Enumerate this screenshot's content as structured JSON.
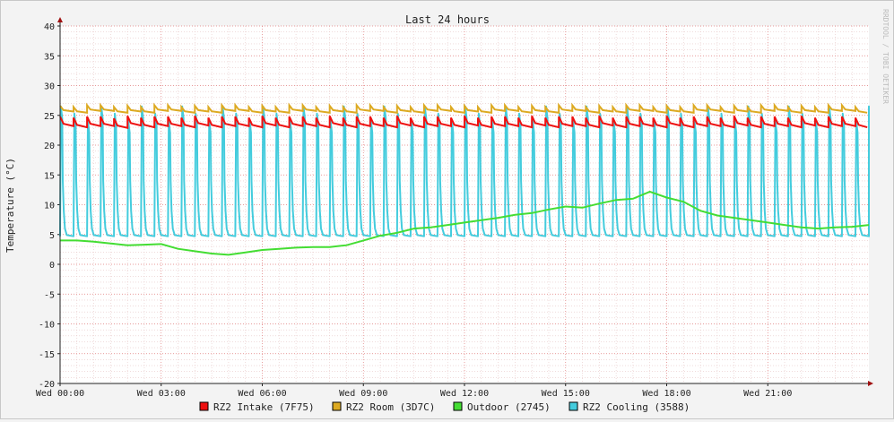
{
  "chart_data": {
    "type": "line",
    "title": "Last 24 hours",
    "ylabel": "Temperature (°C)",
    "watermark": "RRDTOOL / TOBI OETIKER",
    "ylim": [
      -20,
      40
    ],
    "y_ticks": [
      40,
      35,
      30,
      25,
      20,
      15,
      10,
      5,
      0,
      -5,
      -10,
      -15,
      -20
    ],
    "x_ticks": [
      "Wed 00:00",
      "Wed 03:00",
      "Wed 06:00",
      "Wed 09:00",
      "Wed 12:00",
      "Wed 15:00",
      "Wed 18:00",
      "Wed 21:00"
    ],
    "x_tick_hours": [
      0,
      3,
      6,
      9,
      12,
      15,
      18,
      21
    ],
    "xlim_hours": [
      0,
      24
    ],
    "legend_position": "bottom",
    "grid": true,
    "series": [
      {
        "name": "RZ2 Intake (7F75)",
        "color": "#ee1111",
        "x": [
          0,
          0.5,
          1,
          1.5,
          2,
          2.5,
          3,
          3.5,
          4,
          4.5,
          5,
          5.5,
          6,
          6.5,
          7,
          7.5,
          8,
          8.5,
          9,
          9.5,
          10,
          10.5,
          11,
          11.5,
          12,
          12.5,
          13,
          13.5,
          14,
          14.5,
          15,
          15.5,
          16,
          16.5,
          17,
          17.5,
          18,
          18.5,
          19,
          19.5,
          20,
          20.5,
          21,
          21.5,
          22,
          22.5,
          23,
          23.5,
          24
        ],
        "values": [
          23.8,
          23.6,
          23.8,
          23.5,
          23.9,
          23.6,
          23.8,
          23.6,
          23.9,
          23.6,
          23.8,
          23.6,
          23.9,
          23.6,
          23.8,
          23.6,
          23.9,
          23.6,
          23.8,
          23.6,
          23.9,
          23.6,
          23.8,
          23.6,
          23.9,
          23.6,
          23.8,
          23.6,
          23.9,
          23.6,
          23.8,
          23.6,
          23.9,
          23.6,
          23.8,
          23.6,
          23.9,
          23.6,
          23.8,
          23.6,
          23.9,
          23.6,
          23.8,
          23.6,
          23.9,
          23.6,
          23.8,
          23.6,
          23.8
        ]
      },
      {
        "name": "RZ2 Room (3D7C)",
        "color": "#ddaa22",
        "x": [
          0,
          0.5,
          1,
          1.5,
          2,
          2.5,
          3,
          3.5,
          4,
          4.5,
          5,
          5.5,
          6,
          6.5,
          7,
          7.5,
          8,
          8.5,
          9,
          9.5,
          10,
          10.5,
          11,
          11.5,
          12,
          12.5,
          13,
          13.5,
          14,
          14.5,
          15,
          15.5,
          16,
          16.5,
          17,
          17.5,
          18,
          18.5,
          19,
          19.5,
          20,
          20.5,
          21,
          21.5,
          22,
          22.5,
          23,
          23.5,
          24
        ],
        "values": [
          26.0,
          25.8,
          26.1,
          25.8,
          26.0,
          25.8,
          26.1,
          25.8,
          26.0,
          25.8,
          26.1,
          25.8,
          26.0,
          25.8,
          26.1,
          25.8,
          26.0,
          25.8,
          26.1,
          25.8,
          26.0,
          25.8,
          26.1,
          25.8,
          26.0,
          25.8,
          26.1,
          25.8,
          26.0,
          25.8,
          26.1,
          25.8,
          26.0,
          25.8,
          26.1,
          25.8,
          26.0,
          25.8,
          26.1,
          25.8,
          26.0,
          25.8,
          26.1,
          25.8,
          26.0,
          25.8,
          26.1,
          25.8,
          26.0
        ]
      },
      {
        "name": "Outdoor (2745)",
        "color": "#44dd33",
        "x": [
          0,
          0.5,
          1,
          1.5,
          2,
          2.5,
          3,
          3.5,
          4,
          4.5,
          5,
          5.5,
          6,
          6.5,
          7,
          7.5,
          8,
          8.5,
          9,
          9.5,
          10,
          10.5,
          11,
          11.5,
          12,
          12.5,
          13,
          13.5,
          14,
          14.5,
          15,
          15.5,
          16,
          16.5,
          17,
          17.5,
          18,
          18.5,
          19,
          19.5,
          20,
          20.5,
          21,
          21.5,
          22,
          22.5,
          23,
          23.5,
          24
        ],
        "values": [
          4.0,
          4.0,
          3.8,
          3.5,
          3.2,
          3.3,
          3.4,
          2.6,
          2.2,
          1.8,
          1.6,
          2.0,
          2.4,
          2.6,
          2.8,
          2.9,
          2.9,
          3.2,
          4.0,
          4.8,
          5.3,
          6.0,
          6.2,
          6.6,
          7.0,
          7.4,
          7.8,
          8.3,
          8.6,
          9.2,
          9.7,
          9.5,
          10.2,
          10.8,
          11.0,
          12.2,
          11.2,
          10.5,
          9.0,
          8.2,
          7.8,
          7.4,
          7.0,
          6.6,
          6.2,
          6.0,
          6.2,
          6.3,
          6.6
        ]
      },
      {
        "name": "RZ2 Cooling (3588)",
        "color": "#44ccdd",
        "cycle_period_hours": 0.4,
        "baseline": 4.7,
        "peak": 26.5,
        "x": [
          0,
          24
        ],
        "values": [
          4.7,
          26.5
        ]
      }
    ]
  }
}
